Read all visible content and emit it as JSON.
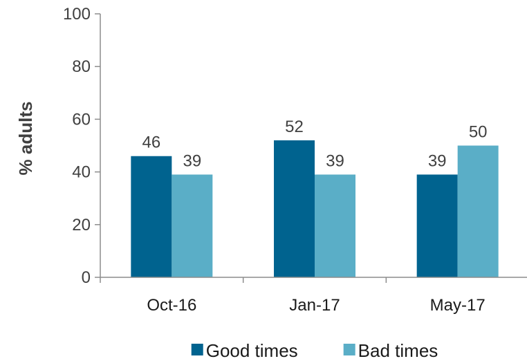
{
  "chart_data": {
    "type": "bar",
    "categories": [
      "Oct-16",
      "Jan-17",
      "May-17"
    ],
    "series": [
      {
        "name": "Good times",
        "values": [
          46,
          52,
          39
        ],
        "color": "#00638f"
      },
      {
        "name": "Bad times",
        "values": [
          39,
          39,
          50
        ],
        "color": "#5aaec7"
      }
    ],
    "ylabel": "% adults",
    "xlabel": "",
    "ylim": [
      0,
      100
    ],
    "yticks": [
      0,
      20,
      40,
      60,
      80,
      100
    ],
    "data_labels": true,
    "grid": false,
    "legend_position": "bottom"
  }
}
